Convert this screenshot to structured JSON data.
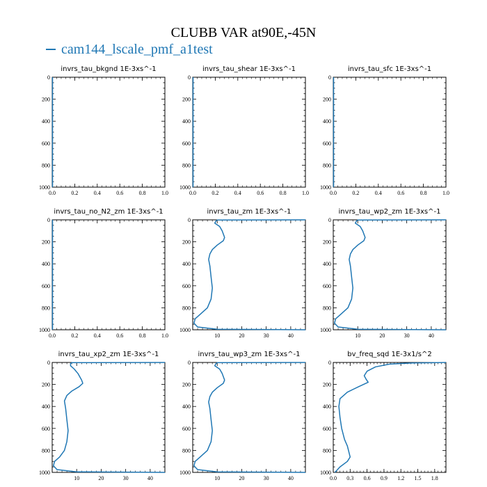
{
  "figure": {
    "title": "CLUBB VAR at90E,-45N",
    "legend_label": "cam144_lscale_pmf_a1test",
    "series_color": "#1f77b4"
  },
  "chart_data": [
    {
      "type": "line",
      "title": "invrs_tau_bkgnd",
      "units": "1E-3xs^-1",
      "xlim": [
        0,
        1
      ],
      "ylim": [
        1000,
        0
      ],
      "xticks": [
        "0.0",
        "0.2",
        "0.4",
        "0.6",
        "0.8",
        "1.0"
      ],
      "yticks": [
        "0",
        "200",
        "400",
        "600",
        "800",
        "1000"
      ],
      "series": [
        {
          "x": [],
          "y": []
        }
      ]
    },
    {
      "type": "line",
      "title": "invrs_tau_shear",
      "units": "1E-3xs^-1",
      "xlim": [
        0,
        1
      ],
      "ylim": [
        1000,
        0
      ],
      "xticks": [
        "0.0",
        "0.2",
        "0.4",
        "0.6",
        "0.8",
        "1.0"
      ],
      "yticks": [
        "0",
        "200",
        "400",
        "600",
        "800",
        "1000"
      ],
      "series": [
        {
          "x": [],
          "y": []
        }
      ]
    },
    {
      "type": "line",
      "title": "invrs_tau_sfc",
      "units": "1E-3xs^-1",
      "xlim": [
        0,
        1
      ],
      "ylim": [
        1000,
        0
      ],
      "xticks": [
        "0.0",
        "0.2",
        "0.4",
        "0.6",
        "0.8",
        "1.0"
      ],
      "yticks": [
        "0",
        "200",
        "400",
        "600",
        "800",
        "1000"
      ],
      "series": [
        {
          "x": [],
          "y": []
        }
      ]
    },
    {
      "type": "line",
      "title": "invrs_tau_no_N2_zm",
      "units": "1E-3xs^-1",
      "xlim": [
        0,
        1
      ],
      "ylim": [
        1000,
        0
      ],
      "xticks": [
        "0.0",
        "0.2",
        "0.4",
        "0.6",
        "0.8",
        "1.0"
      ],
      "yticks": [
        "0",
        "200",
        "400",
        "600",
        "800",
        "1000"
      ],
      "series": [
        {
          "x": [],
          "y": []
        }
      ]
    },
    {
      "type": "line",
      "title": "invrs_tau_zm",
      "units": "1E-3xs^-1",
      "xlim": [
        0,
        46
      ],
      "ylim": [
        1000,
        0
      ],
      "xticks": [
        "10",
        "20",
        "30",
        "40"
      ],
      "xtick_values": [
        10,
        20,
        30,
        40
      ],
      "yticks": [
        "0",
        "200",
        "400",
        "600",
        "800",
        "1000"
      ],
      "series": [
        {
          "x": [
            46,
            10,
            9.5,
            9,
            11,
            12,
            13,
            12.5,
            10,
            8,
            7,
            6.5,
            7,
            7.5,
            8,
            7.5,
            6,
            3,
            1,
            0.5,
            2,
            10,
            46
          ],
          "y": [
            0,
            2,
            10,
            30,
            60,
            100,
            160,
            190,
            230,
            270,
            310,
            360,
            420,
            520,
            620,
            720,
            800,
            860,
            900,
            940,
            975,
            995,
            1000
          ]
        }
      ]
    },
    {
      "type": "line",
      "title": "invrs_tau_wp2_zm",
      "units": "1E-3xs^-1",
      "xlim": [
        0,
        46
      ],
      "ylim": [
        1000,
        0
      ],
      "xticks": [
        "10",
        "20",
        "30",
        "40"
      ],
      "xtick_values": [
        10,
        20,
        30,
        40
      ],
      "yticks": [
        "0",
        "200",
        "400",
        "600",
        "800",
        "1000"
      ],
      "series": [
        {
          "x": [
            46,
            10,
            9.5,
            9,
            11,
            12,
            13,
            12.5,
            10,
            8,
            7,
            6.5,
            7,
            7.5,
            8,
            7.5,
            6,
            3,
            1,
            0.5,
            2,
            10,
            46
          ],
          "y": [
            0,
            2,
            10,
            30,
            60,
            100,
            160,
            190,
            230,
            270,
            310,
            360,
            420,
            520,
            620,
            720,
            800,
            860,
            900,
            940,
            975,
            995,
            1000
          ]
        }
      ]
    },
    {
      "type": "line",
      "title": "invrs_tau_xp2_zm",
      "units": "1E-3xs^-1",
      "xlim": [
        0,
        46
      ],
      "ylim": [
        1000,
        0
      ],
      "xticks": [
        "10",
        "20",
        "30",
        "40"
      ],
      "xtick_values": [
        10,
        20,
        30,
        40
      ],
      "yticks": [
        "0",
        "200",
        "400",
        "600",
        "800",
        "1000"
      ],
      "series": [
        {
          "x": [
            46,
            8,
            7.5,
            7.5,
            9,
            10.5,
            12,
            12.5,
            11,
            8,
            6,
            5,
            5.5,
            6,
            6.5,
            6,
            5,
            3,
            1,
            0.5,
            2,
            10,
            46
          ],
          "y": [
            0,
            2,
            10,
            30,
            60,
            100,
            160,
            190,
            220,
            260,
            300,
            350,
            420,
            520,
            620,
            720,
            800,
            860,
            900,
            940,
            975,
            995,
            1000
          ]
        }
      ]
    },
    {
      "type": "line",
      "title": "invrs_tau_wp3_zm",
      "units": "1E-3xs^-1",
      "xlim": [
        0,
        46
      ],
      "ylim": [
        1000,
        0
      ],
      "xticks": [
        "10",
        "20",
        "30",
        "40"
      ],
      "xtick_values": [
        10,
        20,
        30,
        40
      ],
      "yticks": [
        "0",
        "200",
        "400",
        "600",
        "800",
        "1000"
      ],
      "series": [
        {
          "x": [
            46,
            10,
            9.5,
            9,
            11,
            12,
            13,
            12.5,
            10,
            8,
            7,
            6.5,
            7,
            7.5,
            8,
            7.5,
            6,
            3,
            1,
            0.5,
            2,
            10,
            46
          ],
          "y": [
            0,
            2,
            10,
            30,
            60,
            100,
            160,
            190,
            230,
            270,
            310,
            360,
            420,
            520,
            620,
            720,
            800,
            860,
            900,
            940,
            975,
            995,
            1000
          ]
        }
      ]
    },
    {
      "type": "line",
      "title": "bv_freq_sqd",
      "units": "1E-3x1/s^2",
      "xlim": [
        0,
        2.0
      ],
      "ylim": [
        1000,
        0
      ],
      "xticks": [
        "0.0",
        "0.3",
        "0.6",
        "0.9",
        "1.2",
        "1.5",
        "1.8"
      ],
      "xtick_values": [
        0,
        0.3,
        0.6,
        0.9,
        1.2,
        1.5,
        1.8
      ],
      "yticks": [
        "0",
        "200",
        "400",
        "600",
        "800",
        "1000"
      ],
      "series": [
        {
          "x": [
            2.0,
            1.4,
            1.0,
            0.75,
            0.6,
            0.55,
            0.58,
            0.62,
            0.45,
            0.25,
            0.12,
            0.1,
            0.12,
            0.15,
            0.2,
            0.25,
            0.28,
            0.3,
            0.25,
            0.12,
            0.03
          ],
          "y": [
            0,
            5,
            15,
            40,
            80,
            120,
            150,
            180,
            220,
            270,
            330,
            400,
            500,
            600,
            700,
            760,
            820,
            860,
            900,
            950,
            1000
          ]
        }
      ]
    }
  ]
}
